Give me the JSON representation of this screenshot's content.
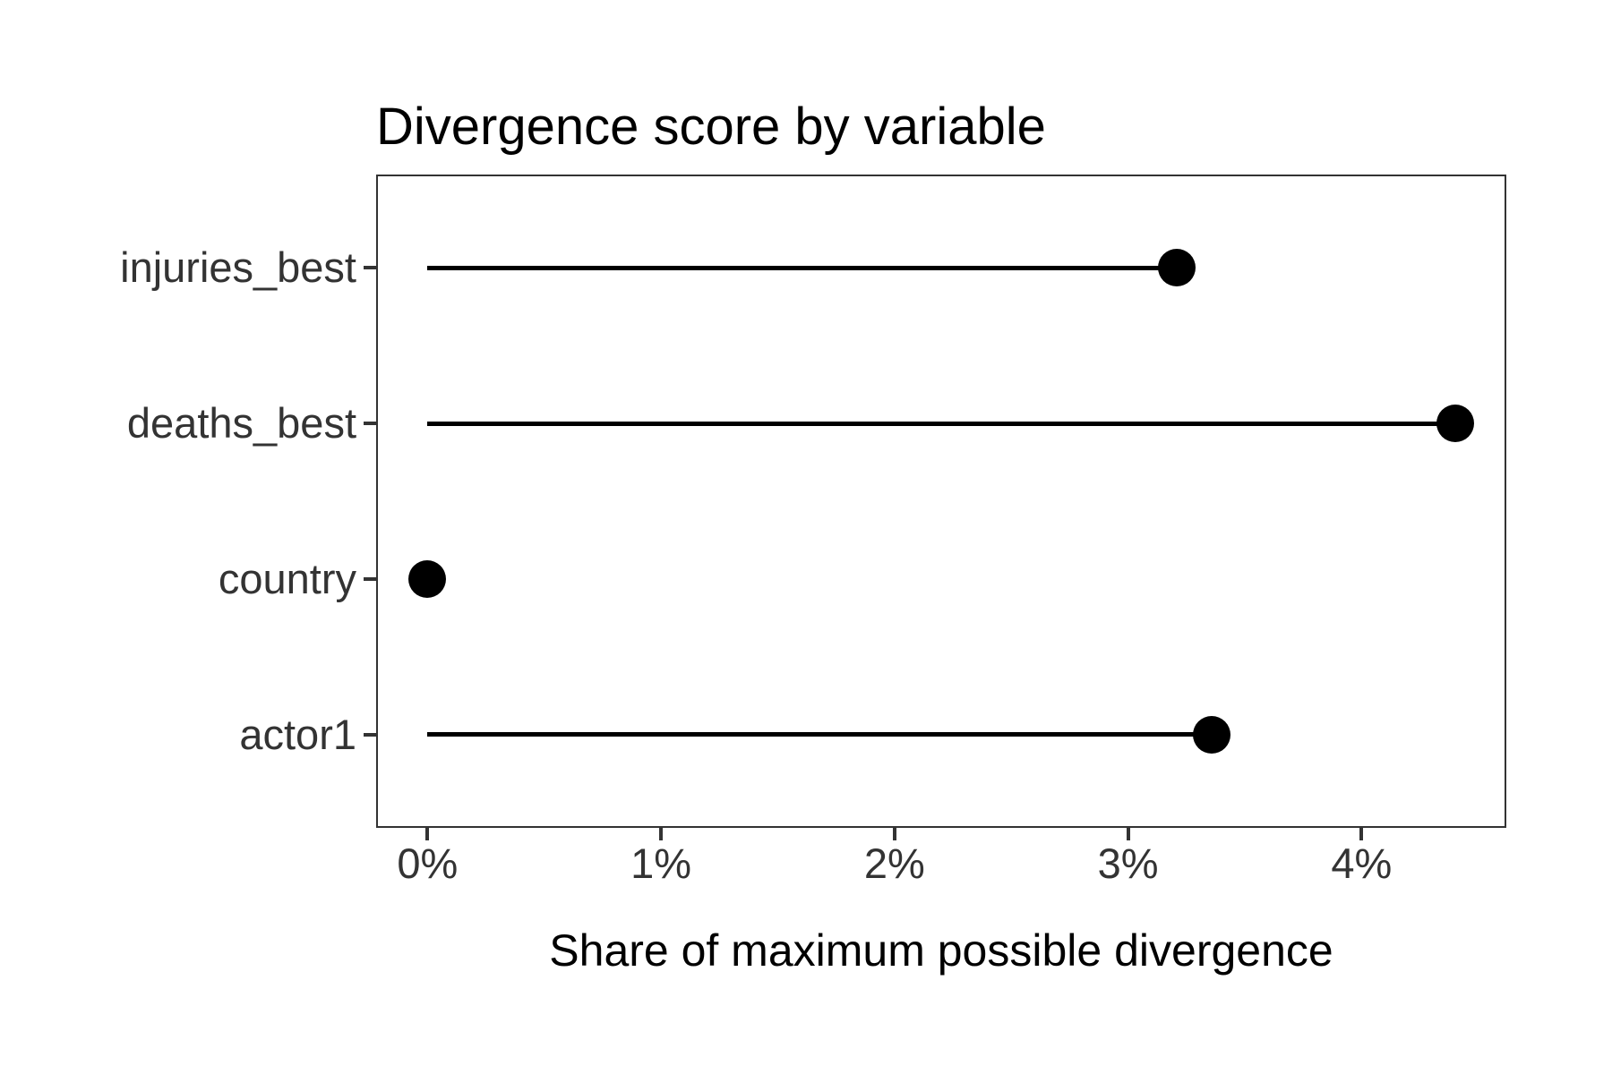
{
  "chart_data": {
    "type": "scatter",
    "variant": "lollipop-horizontal",
    "title": "Divergence score by variable",
    "xlabel": "Share of maximum possible divergence",
    "ylabel": "",
    "categories": [
      "injuries_best",
      "deaths_best",
      "country",
      "actor1"
    ],
    "series": [
      {
        "name": "divergence_share_percent",
        "values": [
          3.21,
          4.4,
          0,
          3.36
        ]
      }
    ],
    "x_ticks": [
      {
        "value": 0,
        "label": "0%"
      },
      {
        "value": 1,
        "label": "1%"
      },
      {
        "value": 2,
        "label": "2%"
      },
      {
        "value": 3,
        "label": "3%"
      },
      {
        "value": 4,
        "label": "4%"
      }
    ],
    "xlim": [
      -0.22,
      4.62
    ],
    "grid": false,
    "legend": "none",
    "colors": {
      "point": "#000000",
      "stem": "#000000",
      "axis_text": "#333333",
      "title_text": "#000000",
      "panel_border": "#333333",
      "background": "#ffffff"
    }
  }
}
